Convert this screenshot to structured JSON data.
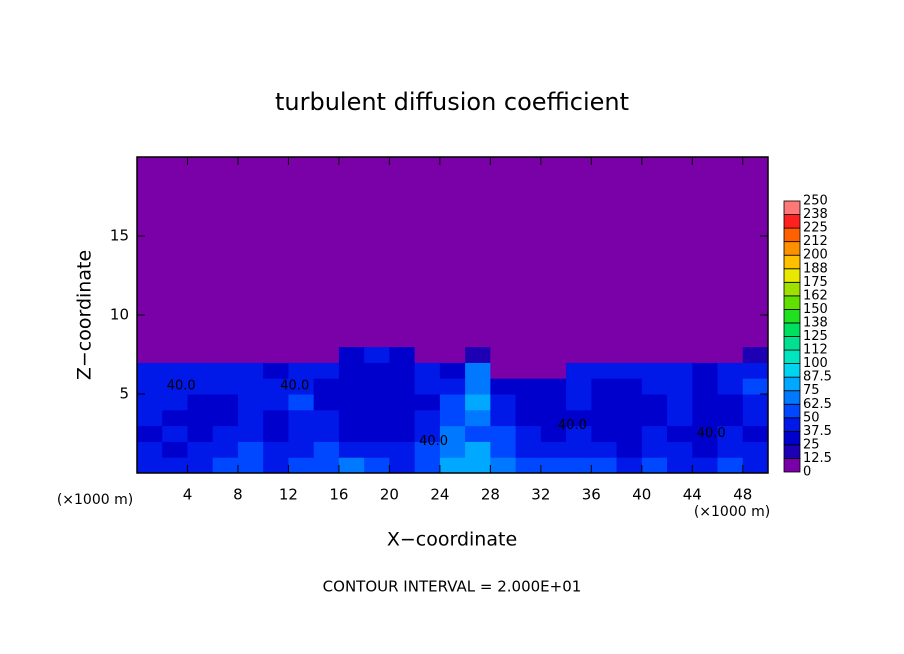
{
  "chart_data": {
    "type": "heatmap",
    "title": "turbulent diffusion coefficient",
    "x_label": "X−coordinate",
    "y_label": "Z−coordinate",
    "x_unit_labels": [
      "(×1000 m)",
      "(×1000 m)"
    ],
    "footnote": "CONTOUR INTERVAL = 2.000E+01",
    "xlim": [
      0,
      50
    ],
    "ylim": [
      0,
      20
    ],
    "xticks": [
      4,
      8,
      12,
      16,
      20,
      24,
      28,
      32,
      36,
      40,
      44,
      48
    ],
    "yticks": [
      5,
      10,
      15
    ],
    "field": {
      "x_edges": [
        0,
        2,
        4,
        6,
        8,
        10,
        12,
        14,
        16,
        18,
        20,
        22,
        24,
        26,
        28,
        30,
        32,
        34,
        36,
        38,
        40,
        42,
        44,
        46,
        48,
        50
      ],
      "z_edges": [
        0,
        1,
        2,
        3,
        4,
        5,
        6,
        7,
        8,
        9,
        20
      ],
      "values": [
        [
          45,
          40,
          45,
          50,
          55,
          45,
          50,
          60,
          70,
          50,
          45,
          55,
          75,
          80,
          70,
          55,
          50,
          55,
          50,
          45,
          50,
          45,
          40,
          50,
          45
        ],
        [
          40,
          35,
          40,
          45,
          50,
          40,
          45,
          55,
          45,
          40,
          45,
          50,
          70,
          75,
          60,
          45,
          40,
          45,
          40,
          35,
          45,
          40,
          35,
          45,
          40
        ],
        [
          35,
          40,
          35,
          40,
          45,
          35,
          40,
          45,
          35,
          30,
          35,
          45,
          65,
          60,
          50,
          40,
          35,
          40,
          35,
          30,
          40,
          35,
          35,
          40,
          35
        ],
        [
          40,
          35,
          30,
          35,
          40,
          35,
          45,
          40,
          30,
          30,
          35,
          40,
          55,
          70,
          45,
          35,
          30,
          35,
          30,
          35,
          30,
          40,
          35,
          30,
          45
        ],
        [
          45,
          40,
          35,
          30,
          40,
          40,
          50,
          35,
          30,
          30,
          35,
          35,
          50,
          75,
          40,
          30,
          30,
          40,
          30,
          30,
          35,
          40,
          30,
          35,
          45
        ],
        [
          45,
          45,
          40,
          40,
          45,
          40,
          45,
          35,
          35,
          35,
          35,
          40,
          45,
          70,
          35,
          30,
          35,
          45,
          35,
          35,
          40,
          40,
          35,
          40,
          50
        ],
        [
          40,
          45,
          45,
          40,
          40,
          35,
          40,
          40,
          35,
          35,
          35,
          40,
          30,
          65,
          5,
          5,
          5,
          40,
          40,
          40,
          45,
          40,
          35,
          40,
          45
        ],
        [
          5,
          5,
          5,
          5,
          5,
          5,
          5,
          5,
          35,
          40,
          35,
          5,
          5,
          20,
          5,
          5,
          5,
          5,
          5,
          5,
          5,
          5,
          5,
          5,
          20
        ],
        [
          5,
          5,
          5,
          5,
          5,
          5,
          5,
          5,
          5,
          5,
          5,
          5,
          5,
          5,
          5,
          5,
          5,
          5,
          5,
          5,
          5,
          5,
          5,
          5,
          5
        ],
        [
          5,
          5,
          5,
          5,
          5,
          5,
          5,
          5,
          5,
          5,
          5,
          5,
          5,
          5,
          5,
          5,
          5,
          5,
          5,
          5,
          5,
          5,
          5,
          5,
          5
        ]
      ]
    },
    "contour_labels": [
      {
        "text": "40.0",
        "x": 3.5,
        "z": 5.5
      },
      {
        "text": "40.0",
        "x": 12.5,
        "z": 5.5
      },
      {
        "text": "40.0",
        "x": 23.5,
        "z": 2.0
      },
      {
        "text": "40.0",
        "x": 34.5,
        "z": 3.0
      },
      {
        "text": "40.0",
        "x": 45.5,
        "z": 2.5
      }
    ],
    "colorbar": {
      "levels": [
        0,
        12.5,
        25,
        37.5,
        50,
        62.5,
        75,
        87.5,
        100,
        {
          "value": 112.5,
          "label": "112"
        },
        125,
        {
          "value": 137.5,
          "label": "138"
        },
        150,
        {
          "value": 162.5,
          "label": "162"
        },
        175,
        {
          "value": 187.5,
          "label": "188"
        },
        200,
        {
          "value": 212.5,
          "label": "212"
        },
        225,
        {
          "value": 237.5,
          "label": "238"
        },
        250
      ],
      "colors": [
        "#7a00a8",
        "#1e00b4",
        "#0000cc",
        "#0018e8",
        "#0048ff",
        "#0078ff",
        "#00a8ff",
        "#00d4f0",
        "#00e4c0",
        "#00e090",
        "#00e060",
        "#20e020",
        "#60e000",
        "#a0e000",
        "#e8e800",
        "#ffc000",
        "#ff9000",
        "#ff6000",
        "#ff2020",
        "#ff7878"
      ]
    }
  }
}
